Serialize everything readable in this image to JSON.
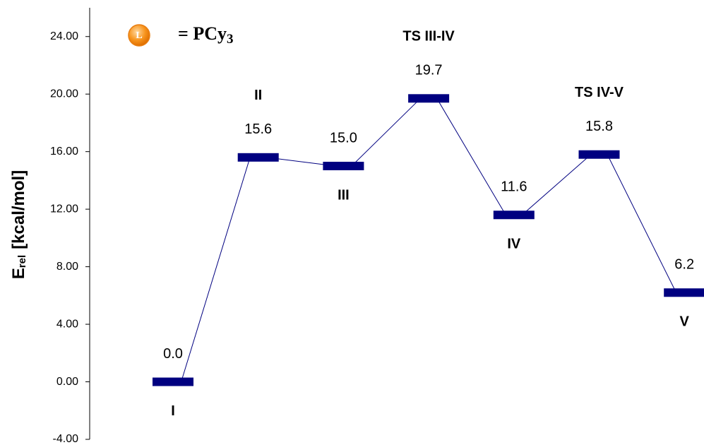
{
  "chart_data": {
    "type": "energy_profile",
    "y_label": "E",
    "y_label_sub": "rel",
    "y_label_unit": "[kcal/mol]",
    "legend_symbol": "L",
    "legend_text": "= PCy",
    "legend_subscript": "3",
    "categories": [
      "I",
      "II",
      "III",
      "TS III-IV",
      "IV",
      "TS IV-V",
      "V"
    ],
    "values": [
      0,
      15.6,
      15.0,
      19.7,
      11.6,
      15.8,
      6.2
    ],
    "value_labels": [
      "0.0",
      "15.6",
      "15.0",
      "19.7",
      "11.6",
      "15.8",
      "6.2"
    ],
    "color": "#000080",
    "ylim": [
      -4,
      26
    ],
    "yticks": [
      {
        "value": -4,
        "label": "-4.00"
      },
      {
        "value": 0,
        "label": "0.00"
      },
      {
        "value": 4,
        "label": "4.00"
      },
      {
        "value": 8,
        "label": "8.00"
      },
      {
        "value": 12,
        "label": "12.00"
      },
      {
        "value": 16,
        "label": "16.00"
      },
      {
        "value": 20,
        "label": "20.00"
      },
      {
        "value": 24,
        "label": "24.00"
      }
    ],
    "grid": false
  }
}
